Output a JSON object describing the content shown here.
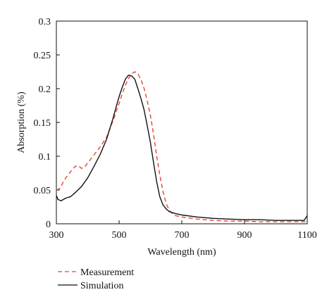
{
  "chart_data": {
    "type": "line",
    "title": "",
    "xlabel": "Wavelength (nm)",
    "ylabel": "Absorption (%)",
    "xlim": [
      300,
      1100
    ],
    "ylim": [
      0,
      0.3
    ],
    "x_ticks": [
      300,
      500,
      700,
      900,
      1100
    ],
    "y_ticks": [
      0,
      0.05,
      0.1,
      0.15,
      0.2,
      0.25,
      0.3
    ],
    "x_tick_labels": [
      "300",
      "500",
      "700",
      "900",
      "1100"
    ],
    "y_tick_labels": [
      "0",
      "0.05",
      "0.1",
      "0.15",
      "0.2",
      "0.25",
      "0.3"
    ],
    "grid": false,
    "legend_position": "bottom-left-below-plot",
    "series": [
      {
        "name": "Measurement",
        "style": "dashed",
        "color": "#e8452f",
        "points": [
          [
            300,
            0.05
          ],
          [
            310,
            0.052
          ],
          [
            320,
            0.06
          ],
          [
            330,
            0.068
          ],
          [
            340,
            0.074
          ],
          [
            350,
            0.08
          ],
          [
            360,
            0.085
          ],
          [
            370,
            0.086
          ],
          [
            380,
            0.082
          ],
          [
            390,
            0.084
          ],
          [
            400,
            0.09
          ],
          [
            420,
            0.102
          ],
          [
            440,
            0.114
          ],
          [
            460,
            0.128
          ],
          [
            480,
            0.152
          ],
          [
            500,
            0.178
          ],
          [
            510,
            0.192
          ],
          [
            520,
            0.205
          ],
          [
            530,
            0.215
          ],
          [
            540,
            0.222
          ],
          [
            550,
            0.225
          ],
          [
            560,
            0.222
          ],
          [
            570,
            0.213
          ],
          [
            580,
            0.2
          ],
          [
            590,
            0.182
          ],
          [
            600,
            0.16
          ],
          [
            610,
            0.132
          ],
          [
            620,
            0.1
          ],
          [
            630,
            0.072
          ],
          [
            640,
            0.048
          ],
          [
            650,
            0.03
          ],
          [
            660,
            0.02
          ],
          [
            670,
            0.015
          ],
          [
            680,
            0.012
          ],
          [
            700,
            0.01
          ],
          [
            750,
            0.007
          ],
          [
            800,
            0.005
          ],
          [
            850,
            0.004
          ],
          [
            900,
            0.004
          ],
          [
            950,
            0.003
          ],
          [
            1000,
            0.003
          ],
          [
            1050,
            0.003
          ],
          [
            1100,
            0.003
          ]
        ]
      },
      {
        "name": "Simulation",
        "style": "solid",
        "color": "#111111",
        "points": [
          [
            300,
            0.042
          ],
          [
            305,
            0.036
          ],
          [
            315,
            0.034
          ],
          [
            330,
            0.038
          ],
          [
            345,
            0.04
          ],
          [
            360,
            0.046
          ],
          [
            380,
            0.055
          ],
          [
            400,
            0.068
          ],
          [
            420,
            0.085
          ],
          [
            440,
            0.103
          ],
          [
            460,
            0.125
          ],
          [
            480,
            0.155
          ],
          [
            490,
            0.172
          ],
          [
            500,
            0.188
          ],
          [
            510,
            0.202
          ],
          [
            520,
            0.214
          ],
          [
            530,
            0.22
          ],
          [
            540,
            0.219
          ],
          [
            550,
            0.214
          ],
          [
            560,
            0.2
          ],
          [
            570,
            0.185
          ],
          [
            580,
            0.168
          ],
          [
            590,
            0.145
          ],
          [
            600,
            0.12
          ],
          [
            610,
            0.09
          ],
          [
            620,
            0.062
          ],
          [
            630,
            0.04
          ],
          [
            640,
            0.028
          ],
          [
            650,
            0.022
          ],
          [
            660,
            0.018
          ],
          [
            680,
            0.015
          ],
          [
            700,
            0.013
          ],
          [
            750,
            0.01
          ],
          [
            800,
            0.008
          ],
          [
            850,
            0.007
          ],
          [
            900,
            0.006
          ],
          [
            950,
            0.006
          ],
          [
            1000,
            0.005
          ],
          [
            1050,
            0.005
          ],
          [
            1090,
            0.005
          ],
          [
            1100,
            0.012
          ]
        ]
      }
    ]
  }
}
